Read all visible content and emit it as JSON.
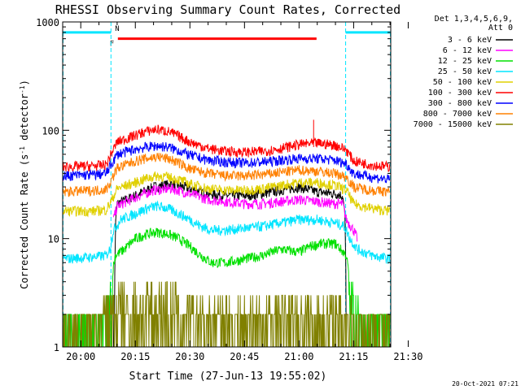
{
  "chart_data": {
    "type": "line",
    "title": "RHESSI Observing Summary Count Rates, Corrected",
    "xlabel": "Start Time (27-Jun-13 19:55:02)",
    "ylabel": "Corrected Count Rate (s",
    "ylabel_sup1": "-1",
    "ylabel_mid": " detector",
    "ylabel_sup2": "-1",
    "ylabel_end": ")",
    "yscale": "log",
    "ylim": [
      1,
      1000
    ],
    "xlim_min": [
      -4.97,
      85.2
    ],
    "x_ticks": [
      {
        "t": 0,
        "label": "20:00"
      },
      {
        "t": 15,
        "label": "20:15"
      },
      {
        "t": 30,
        "label": "20:30"
      },
      {
        "t": 45,
        "label": "20:45"
      },
      {
        "t": 60,
        "label": "21:00"
      },
      {
        "t": 75,
        "label": "21:15"
      },
      {
        "t": 90,
        "label": "21:30"
      }
    ],
    "y_ticks": [
      {
        "v": 1,
        "label": "1"
      },
      {
        "v": 10,
        "label": "10"
      },
      {
        "v": 100,
        "label": "100"
      },
      {
        "v": 1000,
        "label": "1000"
      }
    ],
    "legend_header": [
      "Det 1,3,4,5,6,9,",
      "Att 0"
    ],
    "legend_position": "right",
    "flags": [
      {
        "label": "N",
        "color": "#00e5ff",
        "segments": [
          [
            -4.97,
            8.3
          ],
          [
            72.8,
            85.2
          ]
        ],
        "level": 800
      },
      {
        "label": "F",
        "color": "#ff0000",
        "segments": [
          [
            10.2,
            64.8
          ]
        ],
        "level": 700
      }
    ],
    "night_boundaries": [
      8.3,
      72.8
    ],
    "series": [
      {
        "name": "3 - 6 keV",
        "color": "#000000",
        "points": [
          [
            9,
            1
          ],
          [
            9.6,
            15
          ],
          [
            10,
            21
          ],
          [
            15,
            25
          ],
          [
            20,
            30
          ],
          [
            25,
            32
          ],
          [
            30,
            29
          ],
          [
            35,
            26
          ],
          [
            40,
            25
          ],
          [
            45,
            25
          ],
          [
            50,
            26
          ],
          [
            55,
            28
          ],
          [
            60,
            30
          ],
          [
            65,
            27
          ],
          [
            70,
            26
          ],
          [
            72,
            25
          ],
          [
            72.6,
            16
          ],
          [
            73.2,
            1
          ]
        ]
      },
      {
        "name": "6 - 12 keV",
        "color": "#ff00ff",
        "points": [
          [
            9,
            15
          ],
          [
            10,
            20
          ],
          [
            15,
            24
          ],
          [
            20,
            28
          ],
          [
            25,
            29
          ],
          [
            30,
            26
          ],
          [
            35,
            23
          ],
          [
            40,
            22
          ],
          [
            45,
            21
          ],
          [
            50,
            21
          ],
          [
            55,
            22
          ],
          [
            60,
            23
          ],
          [
            65,
            22
          ],
          [
            70,
            21
          ],
          [
            72,
            21
          ],
          [
            73,
            15
          ],
          [
            75,
            12
          ],
          [
            76,
            10
          ]
        ]
      },
      {
        "name": "12 - 25 keV",
        "color": "#00e000",
        "points": [
          [
            -4.9,
            1.3
          ],
          [
            2,
            1.2
          ],
          [
            6,
            1.4
          ],
          [
            8,
            2
          ],
          [
            8.3,
            4
          ],
          [
            9.5,
            7
          ],
          [
            12,
            8
          ],
          [
            15,
            10
          ],
          [
            18,
            11
          ],
          [
            21,
            11.5
          ],
          [
            24,
            11
          ],
          [
            27,
            10
          ],
          [
            30,
            8.5
          ],
          [
            33,
            7
          ],
          [
            36,
            6
          ],
          [
            40,
            6
          ],
          [
            45,
            6.5
          ],
          [
            50,
            7
          ],
          [
            55,
            8
          ],
          [
            60,
            7.5
          ],
          [
            63,
            8.5
          ],
          [
            66,
            9
          ],
          [
            70,
            9
          ],
          [
            73,
            7
          ],
          [
            74,
            4
          ],
          [
            75,
            2
          ],
          [
            78,
            1.3
          ],
          [
            85,
            1.2
          ]
        ]
      },
      {
        "name": "25 - 50 keV",
        "color": "#00e5ff",
        "points": [
          [
            -4.9,
            6.5
          ],
          [
            4,
            6.8
          ],
          [
            7,
            7
          ],
          [
            8,
            8
          ],
          [
            9,
            12
          ],
          [
            11,
            15
          ],
          [
            15,
            17
          ],
          [
            18,
            19
          ],
          [
            21,
            20
          ],
          [
            24,
            19
          ],
          [
            27,
            17
          ],
          [
            30,
            15
          ],
          [
            33,
            13
          ],
          [
            36,
            12
          ],
          [
            40,
            12
          ],
          [
            45,
            12.5
          ],
          [
            50,
            13
          ],
          [
            55,
            14
          ],
          [
            60,
            15
          ],
          [
            65,
            15
          ],
          [
            70,
            14
          ],
          [
            72.5,
            13
          ],
          [
            74,
            10
          ],
          [
            76,
            8
          ],
          [
            80,
            7
          ],
          [
            85,
            6.5
          ]
        ]
      },
      {
        "name": "50 - 100 keV",
        "color": "#e0d000",
        "points": [
          [
            -4.9,
            18
          ],
          [
            4,
            18
          ],
          [
            7,
            18.5
          ],
          [
            8.3,
            22
          ],
          [
            10,
            29
          ],
          [
            15,
            33
          ],
          [
            18,
            36
          ],
          [
            21,
            38
          ],
          [
            24,
            37
          ],
          [
            27,
            35
          ],
          [
            30,
            32
          ],
          [
            35,
            29
          ],
          [
            40,
            28
          ],
          [
            45,
            28
          ],
          [
            50,
            29
          ],
          [
            55,
            31
          ],
          [
            60,
            33
          ],
          [
            65,
            33
          ],
          [
            70,
            31
          ],
          [
            73,
            28
          ],
          [
            75,
            21
          ],
          [
            80,
            19
          ],
          [
            85,
            18
          ]
        ]
      },
      {
        "name": "100 - 300 keV",
        "color": "#ff0000",
        "points": [
          [
            -4.9,
            46
          ],
          [
            4,
            47
          ],
          [
            7,
            48
          ],
          [
            8.3,
            60
          ],
          [
            10,
            78
          ],
          [
            15,
            90
          ],
          [
            18,
            98
          ],
          [
            21,
            102
          ],
          [
            24,
            98
          ],
          [
            27,
            88
          ],
          [
            30,
            78
          ],
          [
            35,
            68
          ],
          [
            40,
            64
          ],
          [
            45,
            63
          ],
          [
            50,
            64
          ],
          [
            55,
            68
          ],
          [
            60,
            74
          ],
          [
            62,
            75
          ],
          [
            65,
            76
          ],
          [
            70,
            73
          ],
          [
            73,
            66
          ],
          [
            75,
            52
          ],
          [
            80,
            48
          ],
          [
            85,
            46
          ]
        ]
      },
      {
        "name": "300 - 800 keV",
        "color": "#0000ff",
        "points": [
          [
            -4.9,
            38
          ],
          [
            4,
            39
          ],
          [
            7,
            40
          ],
          [
            8.3,
            48
          ],
          [
            10,
            60
          ],
          [
            15,
            67
          ],
          [
            18,
            70
          ],
          [
            21,
            72
          ],
          [
            24,
            70
          ],
          [
            27,
            65
          ],
          [
            30,
            59
          ],
          [
            35,
            53
          ],
          [
            40,
            51
          ],
          [
            45,
            50
          ],
          [
            50,
            51
          ],
          [
            55,
            53
          ],
          [
            60,
            55
          ],
          [
            65,
            55
          ],
          [
            70,
            53
          ],
          [
            73,
            49
          ],
          [
            75,
            40
          ],
          [
            80,
            37
          ],
          [
            85,
            35
          ]
        ]
      },
      {
        "name": "800 - 7000 keV",
        "color": "#ff8000",
        "points": [
          [
            -4.9,
            27
          ],
          [
            4,
            28
          ],
          [
            7,
            28.5
          ],
          [
            8.3,
            34
          ],
          [
            10,
            45
          ],
          [
            15,
            52
          ],
          [
            18,
            55
          ],
          [
            21,
            57
          ],
          [
            24,
            55
          ],
          [
            27,
            50
          ],
          [
            30,
            44
          ],
          [
            35,
            40
          ],
          [
            40,
            38
          ],
          [
            45,
            38
          ],
          [
            50,
            39
          ],
          [
            55,
            41
          ],
          [
            60,
            43
          ],
          [
            65,
            42
          ],
          [
            70,
            40
          ],
          [
            73,
            37
          ],
          [
            75,
            30
          ],
          [
            80,
            28
          ],
          [
            85,
            27
          ]
        ]
      },
      {
        "name": "7000 - 15000 keV",
        "color": "#808000",
        "points": [
          [
            -4.9,
            1.2
          ],
          [
            4,
            1.3
          ],
          [
            8,
            2
          ],
          [
            9,
            3
          ],
          [
            12,
            3
          ],
          [
            15,
            4
          ],
          [
            18,
            4
          ],
          [
            21,
            4
          ],
          [
            24,
            3
          ],
          [
            27,
            2
          ],
          [
            30,
            1.8
          ],
          [
            35,
            1.7
          ],
          [
            40,
            1.6
          ],
          [
            45,
            1.8
          ],
          [
            50,
            2
          ],
          [
            55,
            2
          ],
          [
            60,
            2
          ],
          [
            65,
            2
          ],
          [
            70,
            2
          ],
          [
            73,
            2
          ],
          [
            75,
            1.5
          ],
          [
            80,
            1.3
          ],
          [
            85,
            1.2
          ]
        ]
      }
    ]
  },
  "footer_timestamp": "20-Oct-2021 07:21"
}
